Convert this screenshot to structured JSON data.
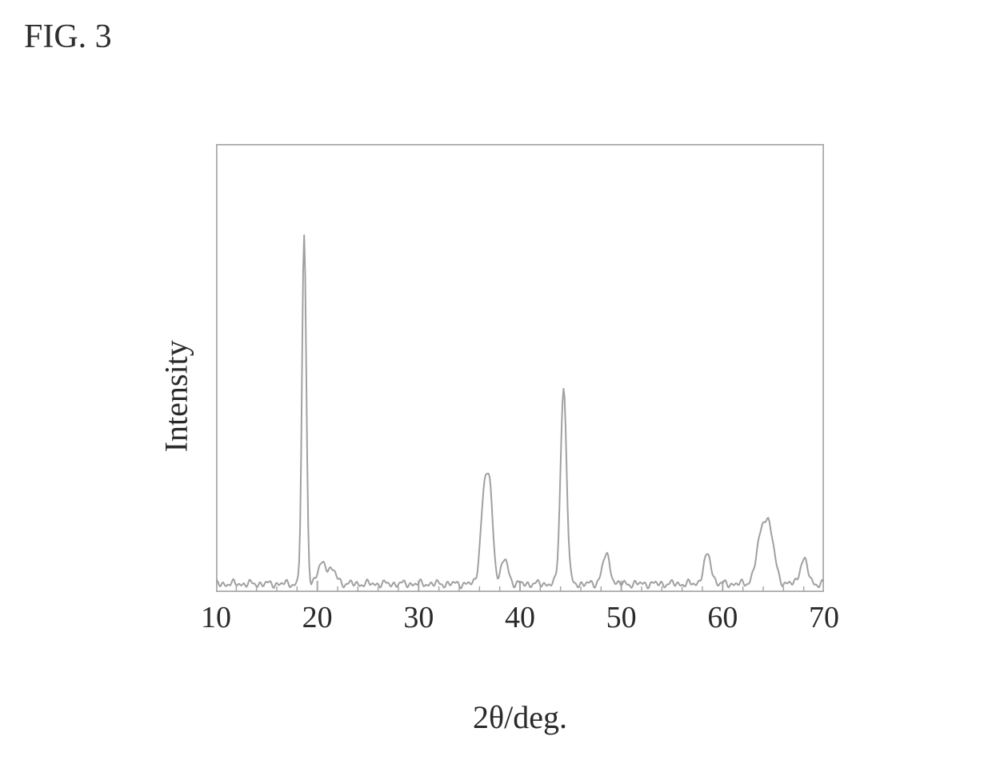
{
  "figure_label": "FIG. 3",
  "xrd_chart": {
    "type": "line",
    "xlabel": "2θ/deg.",
    "ylabel": "Intensity",
    "xlim": [
      10,
      70
    ],
    "ylim": [
      0,
      110
    ],
    "x_ticks": [
      10,
      20,
      30,
      40,
      50,
      60,
      70
    ],
    "x_minor_tick_step": 2,
    "title_fontsize": 42,
    "label_fontsize": 40,
    "tick_fontsize": 38,
    "background_color": "#ffffff",
    "frame_color": "#a8a8a8",
    "frame_thickness": 2.5,
    "tick_color": "#a8a8a8",
    "trace_color": "#a0a0a0",
    "trace_width": 2,
    "text_color": "#2a2a2a",
    "baseline_y": 2,
    "noise_floor_amplitude": 1.2,
    "peaks": [
      {
        "x": 18.7,
        "height": 85,
        "width": 0.5
      },
      {
        "x": 20.5,
        "height": 5,
        "width": 1.0
      },
      {
        "x": 21.5,
        "height": 3,
        "width": 1.0
      },
      {
        "x": 36.4,
        "height": 18,
        "width": 0.8
      },
      {
        "x": 37.0,
        "height": 22,
        "width": 0.8
      },
      {
        "x": 38.5,
        "height": 6,
        "width": 0.8
      },
      {
        "x": 44.3,
        "height": 48,
        "width": 0.7
      },
      {
        "x": 48.5,
        "height": 7,
        "width": 0.9
      },
      {
        "x": 58.5,
        "height": 7,
        "width": 0.9
      },
      {
        "x": 63.8,
        "height": 10,
        "width": 1.2
      },
      {
        "x": 64.6,
        "height": 12,
        "width": 1.2
      },
      {
        "x": 68.0,
        "height": 6,
        "width": 0.9
      }
    ]
  }
}
